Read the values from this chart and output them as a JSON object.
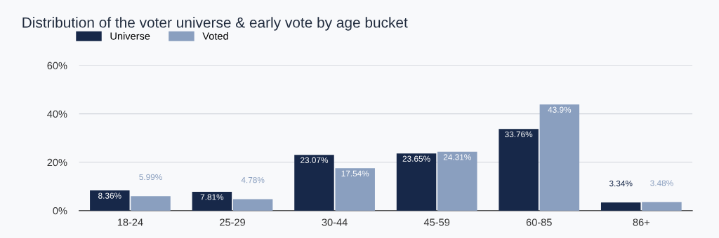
{
  "chart_data": {
    "type": "bar",
    "title": "Distribution of the voter universe & early vote by age bucket",
    "categories": [
      "18-24",
      "25-29",
      "30-44",
      "45-59",
      "60-85",
      "86+"
    ],
    "series": [
      {
        "name": "Universe",
        "color": "#172849",
        "values": [
          8.36,
          7.81,
          23.07,
          23.65,
          33.76,
          3.34
        ],
        "value_labels": [
          "8.36%",
          "7.81%",
          "23.07%",
          "23.65%",
          "33.76%",
          "3.34%"
        ]
      },
      {
        "name": "Voted",
        "color": "#8a9fbf",
        "values": [
          5.99,
          4.78,
          17.54,
          24.31,
          43.9,
          3.48
        ],
        "value_labels": [
          "5.99%",
          "4.78%",
          "17.54%",
          "24.31%",
          "43.9%",
          "3.48%"
        ]
      }
    ],
    "ylim": [
      0,
      60
    ],
    "yticks": [
      {
        "value": 0,
        "label": "0%"
      },
      {
        "value": 20,
        "label": "20%"
      },
      {
        "value": 40,
        "label": "40%"
      },
      {
        "value": 60,
        "label": "60%"
      }
    ],
    "grid": "y",
    "legend": "top left"
  }
}
